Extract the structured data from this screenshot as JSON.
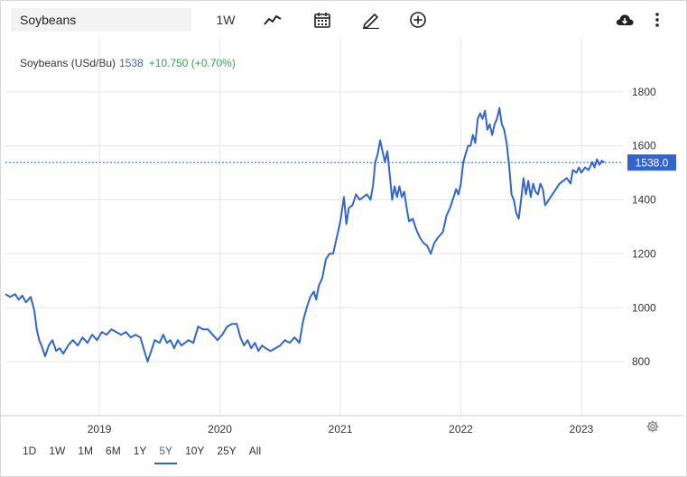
{
  "search": {
    "value": "Soybeans"
  },
  "toolbar": {
    "interval_label": "1W",
    "chart_type_icon": "line-chart-icon",
    "calendar_icon": "calendar-icon",
    "draw_icon": "pencil-icon",
    "compare_icon": "plus-circle-icon",
    "download_icon": "cloud-download-icon",
    "menu_icon": "more-vert-icon"
  },
  "legend": {
    "name": "Soybeans (USd/Bu)",
    "value": "1538",
    "change": "+10.750 (+0.70%)"
  },
  "last_price_tag": "1538.0",
  "ranges": [
    {
      "label": "1D",
      "active": false
    },
    {
      "label": "1W",
      "active": false
    },
    {
      "label": "1M",
      "active": false
    },
    {
      "label": "6M",
      "active": false
    },
    {
      "label": "1Y",
      "active": false
    },
    {
      "label": "5Y",
      "active": true
    },
    {
      "label": "10Y",
      "active": false
    },
    {
      "label": "25Y",
      "active": false
    },
    {
      "label": "All",
      "active": false
    }
  ],
  "colors": {
    "line": "#3366cc",
    "up": "#2ea44f",
    "tag": "#3366cc",
    "grid": "#e6e6e6"
  },
  "settings_icon": "gear-icon",
  "chart_data": {
    "type": "line",
    "title": "",
    "xlabel": "",
    "ylabel": "",
    "ylim": [
      600,
      2000
    ],
    "yticks": [
      800,
      1000,
      1200,
      1400,
      1600,
      1800
    ],
    "xlim": [
      2018.22,
      2023.27
    ],
    "xticks": [
      {
        "value": 2019.0,
        "label": "2019"
      },
      {
        "value": 2020.0,
        "label": "2020"
      },
      {
        "value": 2021.0,
        "label": "2021"
      },
      {
        "value": 2022.0,
        "label": "2022"
      },
      {
        "value": 2023.0,
        "label": "2023"
      }
    ],
    "reference_line": 1538,
    "series": [
      {
        "values": [
          [
            2018.22,
            1050
          ],
          [
            2018.26,
            1040
          ],
          [
            2018.3,
            1050
          ],
          [
            2018.33,
            1030
          ],
          [
            2018.36,
            1045
          ],
          [
            2018.39,
            1020
          ],
          [
            2018.43,
            1040
          ],
          [
            2018.46,
            990
          ],
          [
            2018.48,
            920
          ],
          [
            2018.5,
            880
          ],
          [
            2018.52,
            860
          ],
          [
            2018.55,
            820
          ],
          [
            2018.58,
            860
          ],
          [
            2018.61,
            880
          ],
          [
            2018.64,
            840
          ],
          [
            2018.67,
            850
          ],
          [
            2018.7,
            830
          ],
          [
            2018.74,
            860
          ],
          [
            2018.78,
            880
          ],
          [
            2018.82,
            860
          ],
          [
            2018.86,
            890
          ],
          [
            2018.9,
            870
          ],
          [
            2018.94,
            900
          ],
          [
            2018.98,
            880
          ],
          [
            2019.02,
            910
          ],
          [
            2019.06,
            900
          ],
          [
            2019.1,
            920
          ],
          [
            2019.14,
            910
          ],
          [
            2019.18,
            900
          ],
          [
            2019.22,
            910
          ],
          [
            2019.26,
            890
          ],
          [
            2019.3,
            900
          ],
          [
            2019.34,
            890
          ],
          [
            2019.38,
            830
          ],
          [
            2019.4,
            800
          ],
          [
            2019.43,
            840
          ],
          [
            2019.46,
            880
          ],
          [
            2019.5,
            870
          ],
          [
            2019.53,
            900
          ],
          [
            2019.56,
            870
          ],
          [
            2019.59,
            880
          ],
          [
            2019.62,
            850
          ],
          [
            2019.65,
            880
          ],
          [
            2019.68,
            860
          ],
          [
            2019.71,
            870
          ],
          [
            2019.74,
            880
          ],
          [
            2019.78,
            870
          ],
          [
            2019.82,
            930
          ],
          [
            2019.86,
            920
          ],
          [
            2019.9,
            920
          ],
          [
            2019.94,
            900
          ],
          [
            2019.98,
            880
          ],
          [
            2020.02,
            900
          ],
          [
            2020.06,
            930
          ],
          [
            2020.1,
            940
          ],
          [
            2020.14,
            940
          ],
          [
            2020.17,
            890
          ],
          [
            2020.2,
            860
          ],
          [
            2020.23,
            880
          ],
          [
            2020.26,
            850
          ],
          [
            2020.29,
            870
          ],
          [
            2020.32,
            840
          ],
          [
            2020.35,
            860
          ],
          [
            2020.38,
            850
          ],
          [
            2020.42,
            840
          ],
          [
            2020.46,
            850
          ],
          [
            2020.5,
            860
          ],
          [
            2020.54,
            880
          ],
          [
            2020.58,
            870
          ],
          [
            2020.62,
            890
          ],
          [
            2020.66,
            870
          ],
          [
            2020.69,
            950
          ],
          [
            2020.72,
            1000
          ],
          [
            2020.75,
            1040
          ],
          [
            2020.78,
            1060
          ],
          [
            2020.8,
            1030
          ],
          [
            2020.82,
            1080
          ],
          [
            2020.85,
            1110
          ],
          [
            2020.88,
            1180
          ],
          [
            2020.91,
            1200
          ],
          [
            2020.94,
            1200
          ],
          [
            2020.97,
            1260
          ],
          [
            2021.0,
            1320
          ],
          [
            2021.03,
            1410
          ],
          [
            2021.05,
            1310
          ],
          [
            2021.07,
            1370
          ],
          [
            2021.1,
            1380
          ],
          [
            2021.13,
            1420
          ],
          [
            2021.16,
            1400
          ],
          [
            2021.19,
            1410
          ],
          [
            2021.22,
            1420
          ],
          [
            2021.25,
            1400
          ],
          [
            2021.27,
            1450
          ],
          [
            2021.29,
            1540
          ],
          [
            2021.31,
            1570
          ],
          [
            2021.33,
            1620
          ],
          [
            2021.35,
            1580
          ],
          [
            2021.37,
            1540
          ],
          [
            2021.39,
            1580
          ],
          [
            2021.41,
            1490
          ],
          [
            2021.43,
            1400
          ],
          [
            2021.45,
            1450
          ],
          [
            2021.47,
            1410
          ],
          [
            2021.49,
            1450
          ],
          [
            2021.51,
            1410
          ],
          [
            2021.53,
            1430
          ],
          [
            2021.55,
            1370
          ],
          [
            2021.57,
            1320
          ],
          [
            2021.6,
            1330
          ],
          [
            2021.63,
            1290
          ],
          [
            2021.66,
            1260
          ],
          [
            2021.69,
            1240
          ],
          [
            2021.72,
            1230
          ],
          [
            2021.75,
            1200
          ],
          [
            2021.78,
            1240
          ],
          [
            2021.81,
            1260
          ],
          [
            2021.85,
            1280
          ],
          [
            2021.88,
            1340
          ],
          [
            2021.91,
            1370
          ],
          [
            2021.94,
            1410
          ],
          [
            2021.96,
            1440
          ],
          [
            2021.98,
            1420
          ],
          [
            2022.0,
            1460
          ],
          [
            2022.02,
            1540
          ],
          [
            2022.04,
            1570
          ],
          [
            2022.06,
            1600
          ],
          [
            2022.08,
            1600
          ],
          [
            2022.1,
            1640
          ],
          [
            2022.12,
            1610
          ],
          [
            2022.14,
            1700
          ],
          [
            2022.16,
            1720
          ],
          [
            2022.18,
            1700
          ],
          [
            2022.2,
            1730
          ],
          [
            2022.22,
            1660
          ],
          [
            2022.24,
            1680
          ],
          [
            2022.26,
            1640
          ],
          [
            2022.28,
            1680
          ],
          [
            2022.3,
            1700
          ],
          [
            2022.32,
            1740
          ],
          [
            2022.34,
            1680
          ],
          [
            2022.36,
            1660
          ],
          [
            2022.38,
            1610
          ],
          [
            2022.4,
            1530
          ],
          [
            2022.42,
            1420
          ],
          [
            2022.44,
            1400
          ],
          [
            2022.46,
            1350
          ],
          [
            2022.48,
            1330
          ],
          [
            2022.5,
            1400
          ],
          [
            2022.52,
            1480
          ],
          [
            2022.54,
            1420
          ],
          [
            2022.56,
            1470
          ],
          [
            2022.58,
            1410
          ],
          [
            2022.6,
            1460
          ],
          [
            2022.62,
            1430
          ],
          [
            2022.64,
            1420
          ],
          [
            2022.66,
            1460
          ],
          [
            2022.68,
            1440
          ],
          [
            2022.7,
            1380
          ],
          [
            2022.73,
            1400
          ],
          [
            2022.76,
            1420
          ],
          [
            2022.79,
            1440
          ],
          [
            2022.82,
            1460
          ],
          [
            2022.85,
            1470
          ],
          [
            2022.88,
            1480
          ],
          [
            2022.91,
            1460
          ],
          [
            2022.93,
            1510
          ],
          [
            2022.96,
            1500
          ],
          [
            2022.98,
            1520
          ],
          [
            2023.0,
            1500
          ],
          [
            2023.03,
            1520
          ],
          [
            2023.06,
            1510
          ],
          [
            2023.09,
            1540
          ],
          [
            2023.11,
            1520
          ],
          [
            2023.13,
            1550
          ],
          [
            2023.15,
            1530
          ],
          [
            2023.17,
            1545
          ],
          [
            2023.19,
            1538
          ]
        ]
      }
    ]
  }
}
